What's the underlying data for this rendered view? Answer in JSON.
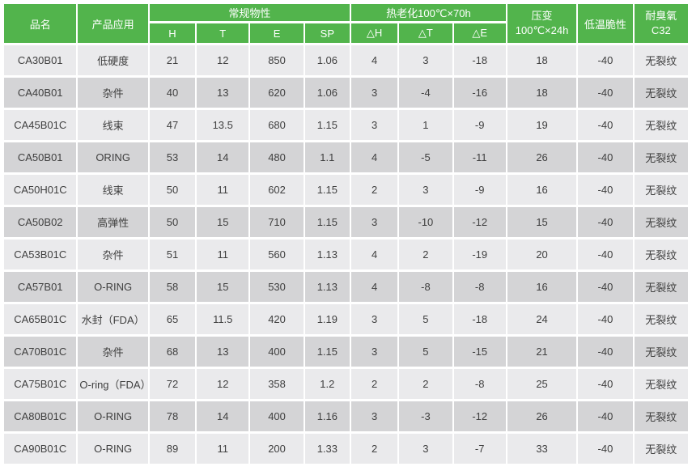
{
  "colors": {
    "header_green": "#52b44c",
    "header_text": "#ffffff",
    "row_light": "#eaeaec",
    "row_dark": "#d4d4d6",
    "body_text": "#3f3f3f",
    "background": "#ffffff"
  },
  "table": {
    "header": {
      "product_name": "品名",
      "application": "产品应用",
      "normal_properties": "常规物性",
      "normal_sub": [
        "H",
        "T",
        "E",
        "SP"
      ],
      "heat_aging": "热老化100℃×70h",
      "heat_sub": [
        "△H",
        "△T",
        "△E"
      ],
      "compression_set": "压变\n100℃×24h",
      "low_temp_brittleness": "低温脆性",
      "ozone_resistance": "耐臭氧\nC32"
    },
    "column_keys": [
      "product-name",
      "application",
      "hardness-h",
      "tensile-t",
      "elongation-e",
      "sp",
      "delta-h",
      "delta-t",
      "delta-e",
      "compression-set",
      "low-temp-brittleness",
      "ozone-resistance"
    ],
    "rows": [
      [
        "CA30B01",
        "低硬度",
        "21",
        "12",
        "850",
        "1.06",
        "4",
        "3",
        "-18",
        "18",
        "-40",
        "无裂纹"
      ],
      [
        "CA40B01",
        "杂件",
        "40",
        "13",
        "620",
        "1.06",
        "3",
        "-4",
        "-16",
        "18",
        "-40",
        "无裂纹"
      ],
      [
        "CA45B01C",
        "线束",
        "47",
        "13.5",
        "680",
        "1.15",
        "3",
        "1",
        "-9",
        "19",
        "-40",
        "无裂纹"
      ],
      [
        "CA50B01",
        "ORING",
        "53",
        "14",
        "480",
        "1.1",
        "4",
        "-5",
        "-11",
        "26",
        "-40",
        "无裂纹"
      ],
      [
        "CA50H01C",
        "线束",
        "50",
        "11",
        "602",
        "1.15",
        "2",
        "3",
        "-9",
        "16",
        "-40",
        "无裂纹"
      ],
      [
        "CA50B02",
        "高弹性",
        "50",
        "15",
        "710",
        "1.15",
        "3",
        "-10",
        "-12",
        "15",
        "-40",
        "无裂纹"
      ],
      [
        "CA53B01C",
        "杂件",
        "51",
        "11",
        "560",
        "1.13",
        "4",
        "2",
        "-19",
        "20",
        "-40",
        "无裂纹"
      ],
      [
        "CA57B01",
        "O-RING",
        "58",
        "15",
        "530",
        "1.13",
        "4",
        "-8",
        "-8",
        "16",
        "-40",
        "无裂纹"
      ],
      [
        "CA65B01C",
        "水封（FDA）",
        "65",
        "11.5",
        "420",
        "1.19",
        "3",
        "5",
        "-18",
        "24",
        "-40",
        "无裂纹"
      ],
      [
        "CA70B01C",
        "杂件",
        "68",
        "13",
        "400",
        "1.15",
        "3",
        "5",
        "-15",
        "21",
        "-40",
        "无裂纹"
      ],
      [
        "CA75B01C",
        "O-ring（FDA）",
        "72",
        "12",
        "358",
        "1.2",
        "2",
        "2",
        "-8",
        "25",
        "-40",
        "无裂纹"
      ],
      [
        "CA80B01C",
        "O-RING",
        "78",
        "14",
        "400",
        "1.16",
        "3",
        "-3",
        "-12",
        "26",
        "-40",
        "无裂纹"
      ],
      [
        "CA90B01C",
        "O-RING",
        "89",
        "11",
        "200",
        "1.33",
        "2",
        "3",
        "-7",
        "33",
        "-40",
        "无裂纹"
      ]
    ]
  }
}
